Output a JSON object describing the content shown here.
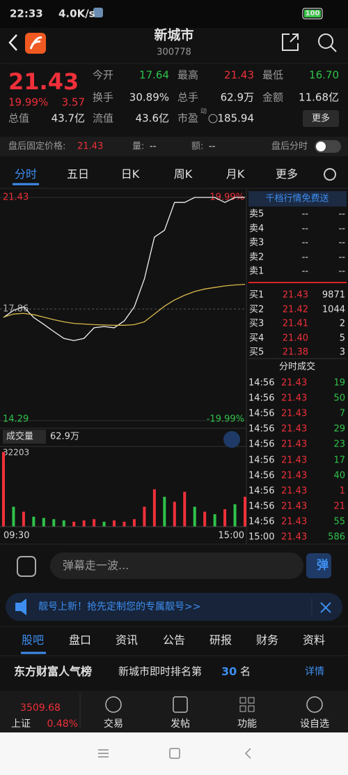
{
  "status_bar": {
    "time": "22:33",
    "speed": "4.0K/s",
    "battery": "100"
  },
  "header": {
    "title": "新城市",
    "code": "300778"
  },
  "quote": {
    "price": "21.43",
    "change_pct": "19.99%",
    "change": "3.57",
    "stats": [
      {
        "label": "今开",
        "value": "17.64"
      },
      {
        "label": "最高",
        "value": "21.43"
      },
      {
        "label": "最低",
        "value": "16.70"
      },
      {
        "label": "换手",
        "value": "30.89%"
      },
      {
        "label": "总手",
        "value": "62.9万"
      },
      {
        "label": "金额",
        "value": "11.68亿"
      },
      {
        "label": "总值",
        "value": "43.7亿"
      },
      {
        "label": "流值",
        "value": "43.6亿"
      },
      {
        "label": "市盈",
        "tag": "动",
        "value": "185.94"
      }
    ],
    "more": "更多"
  },
  "after_hours": {
    "label": "盘后固定价格:",
    "price": "21.43",
    "volume_label": "量:",
    "volume": "--",
    "amount_label": "额:",
    "amount": "--",
    "toggle_label": "盘后分时"
  },
  "tabs": [
    "分时",
    "五日",
    "日K",
    "周K",
    "月K",
    "更多"
  ],
  "chart_data": [
    {
      "type": "line",
      "ylim": [
        14.29,
        21.43
      ],
      "yticks": [
        21.43,
        17.86,
        14.29
      ],
      "y2lim": [
        -19.99,
        19.99
      ],
      "y2ticks": [
        {
          "value": 19.99,
          "label": "19.99%"
        },
        {
          "value": -19.99,
          "label": "-19.99%"
        }
      ],
      "xlim": [
        0,
        240
      ],
      "xticks": [
        {
          "value": 0,
          "label": "09:30"
        },
        {
          "value": 240,
          "label": "15:00"
        }
      ],
      "x": [
        0,
        10,
        20,
        30,
        40,
        50,
        60,
        70,
        80,
        90,
        100,
        110,
        120,
        130,
        140,
        150,
        160,
        170,
        180,
        190,
        200,
        210,
        220,
        230,
        240
      ],
      "series": [
        {
          "color": "#f2f2f2",
          "values": [
            17.59,
            17.82,
            17.93,
            17.59,
            17.37,
            17.14,
            16.92,
            16.85,
            16.92,
            17.26,
            17.3,
            17.26,
            17.48,
            17.93,
            18.82,
            20.16,
            20.38,
            21.27,
            21.27,
            21.43,
            21.43,
            21.43,
            21.27,
            21.43,
            21.43
          ]
        },
        {
          "color": "#d9b94a",
          "values": [
            17.6,
            17.7,
            17.72,
            17.68,
            17.6,
            17.52,
            17.45,
            17.4,
            17.38,
            17.36,
            17.35,
            17.34,
            17.34,
            17.36,
            17.45,
            17.7,
            17.95,
            18.15,
            18.3,
            18.42,
            18.5,
            18.55,
            18.6,
            18.63,
            18.65
          ]
        }
      ]
    },
    {
      "type": "bar",
      "legend": {
        "name": "成交量",
        "value": "62.9万"
      },
      "ylim": [
        0,
        32203
      ],
      "yticks": [
        32203
      ],
      "xlim": [
        0,
        240
      ],
      "x": [
        0,
        10,
        20,
        30,
        40,
        50,
        60,
        70,
        80,
        90,
        100,
        110,
        120,
        130,
        140,
        150,
        160,
        170,
        180,
        190,
        200,
        210,
        220,
        230,
        240
      ],
      "values": [
        30000,
        8000,
        6000,
        4000,
        3500,
        3000,
        2500,
        2000,
        2500,
        3000,
        2000,
        2500,
        2000,
        3000,
        8000,
        15000,
        12000,
        10000,
        14000,
        8000,
        6000,
        5000,
        7000,
        9000,
        12000
      ],
      "colors": [
        "#f0303a",
        "#2fc34a",
        "#f0303a",
        "#2fc34a",
        "#2fc34a",
        "#2fc34a",
        "#2fc34a",
        "#f0303a",
        "#f0303a",
        "#f0303a",
        "#2fc34a",
        "#f0303a",
        "#f0303a",
        "#f0303a",
        "#f0303a",
        "#f0303a",
        "#2fc34a",
        "#f0303a",
        "#f0303a",
        "#2fc34a",
        "#f0303a",
        "#2fc34a",
        "#f0303a",
        "#2fc34a",
        "#f0303a"
      ]
    }
  ],
  "order_book": {
    "promo": "千档行情免费送",
    "sell": [
      [
        "卖5",
        "--",
        "--"
      ],
      [
        "卖4",
        "--",
        "--"
      ],
      [
        "卖3",
        "--",
        "--"
      ],
      [
        "卖2",
        "--",
        "--"
      ],
      [
        "卖1",
        "--",
        "--"
      ]
    ],
    "buy": [
      [
        "买1",
        "21.43",
        "9871"
      ],
      [
        "买2",
        "21.42",
        "1044"
      ],
      [
        "买3",
        "21.41",
        "2"
      ],
      [
        "买4",
        "21.40",
        "5"
      ],
      [
        "买5",
        "21.38",
        "3"
      ]
    ],
    "trades_title": "分时成交",
    "trades": [
      {
        "time": "14:56",
        "price": "21.43",
        "volume": "19",
        "color": "green"
      },
      {
        "time": "14:56",
        "price": "21.43",
        "volume": "50",
        "color": "green"
      },
      {
        "time": "14:56",
        "price": "21.43",
        "volume": "7",
        "color": "green"
      },
      {
        "time": "14:56",
        "price": "21.43",
        "volume": "29",
        "color": "green"
      },
      {
        "time": "14:56",
        "price": "21.43",
        "volume": "23",
        "color": "green"
      },
      {
        "time": "14:56",
        "price": "21.43",
        "volume": "17",
        "color": "green"
      },
      {
        "time": "14:56",
        "price": "21.43",
        "volume": "40",
        "color": "green"
      },
      {
        "time": "14:56",
        "price": "21.43",
        "volume": "1",
        "color": "red"
      },
      {
        "time": "14:56",
        "price": "21.43",
        "volume": "21",
        "color": "red"
      },
      {
        "time": "14:56",
        "price": "21.43",
        "volume": "55",
        "color": "green"
      },
      {
        "time": "15:00",
        "price": "21.43",
        "volume": "586",
        "color": "green"
      }
    ]
  },
  "comment": {
    "placeholder": "弹幕走一波...",
    "button": "弹"
  },
  "banner": "靓号上新！抢先定制您的专属靓号>>",
  "sub_tabs": [
    "股吧",
    "盘口",
    "资讯",
    "公告",
    "研报",
    "财务",
    "资料"
  ],
  "ranking": {
    "brand": "东方财富人气榜",
    "text": "新城市即时排名第",
    "rank": "30",
    "unit": "名",
    "details": "详情"
  },
  "footer": {
    "index_value": "3509.68",
    "index_name": "上证",
    "index_pct": "0.48%",
    "nav": [
      "交易",
      "发帖",
      "功能",
      "设自选"
    ]
  }
}
